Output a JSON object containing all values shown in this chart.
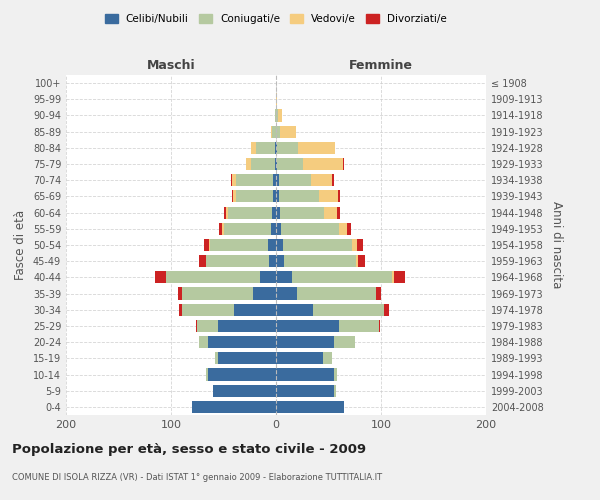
{
  "age_groups": [
    "0-4",
    "5-9",
    "10-14",
    "15-19",
    "20-24",
    "25-29",
    "30-34",
    "35-39",
    "40-44",
    "45-49",
    "50-54",
    "55-59",
    "60-64",
    "65-69",
    "70-74",
    "75-79",
    "80-84",
    "85-89",
    "90-94",
    "95-99",
    "100+"
  ],
  "birth_years": [
    "2004-2008",
    "1999-2003",
    "1994-1998",
    "1989-1993",
    "1984-1988",
    "1979-1983",
    "1974-1978",
    "1969-1973",
    "1964-1968",
    "1959-1963",
    "1954-1958",
    "1949-1953",
    "1944-1948",
    "1939-1943",
    "1934-1938",
    "1929-1933",
    "1924-1928",
    "1919-1923",
    "1914-1918",
    "1909-1913",
    "≤ 1908"
  ],
  "colors": {
    "celibi": "#3a6b9e",
    "coniugati": "#b5c9a0",
    "vedovi": "#f5cc7f",
    "divorziati": "#cc2222"
  },
  "legend_colors": {
    "Celibi/Nubili": "#3a6b9e",
    "Coniugati/e": "#b5c9a0",
    "Vedovi/e": "#f5cc7f",
    "Divorziati/e": "#cc2222"
  },
  "males": {
    "celibi": [
      80,
      60,
      65,
      55,
      65,
      55,
      40,
      22,
      15,
      7,
      8,
      5,
      4,
      3,
      3,
      1,
      1,
      0,
      0,
      0,
      0
    ],
    "coniugati": [
      0,
      0,
      2,
      3,
      8,
      20,
      50,
      68,
      90,
      60,
      55,
      45,
      42,
      35,
      35,
      23,
      18,
      4,
      1,
      0,
      0
    ],
    "vedovi": [
      0,
      0,
      0,
      0,
      0,
      0,
      0,
      0,
      0,
      0,
      1,
      1,
      2,
      3,
      4,
      5,
      5,
      1,
      0,
      0,
      0
    ],
    "divorziati": [
      0,
      0,
      0,
      0,
      0,
      1,
      2,
      3,
      10,
      6,
      5,
      3,
      2,
      1,
      1,
      0,
      0,
      0,
      0,
      0,
      0
    ]
  },
  "females": {
    "celibi": [
      65,
      55,
      55,
      45,
      55,
      60,
      35,
      20,
      15,
      8,
      7,
      5,
      4,
      3,
      3,
      1,
      1,
      0,
      0,
      0,
      0
    ],
    "coniugati": [
      0,
      2,
      3,
      8,
      20,
      38,
      68,
      75,
      95,
      68,
      65,
      55,
      42,
      38,
      30,
      25,
      20,
      4,
      2,
      0,
      0
    ],
    "vedovi": [
      0,
      0,
      0,
      0,
      0,
      0,
      0,
      0,
      2,
      2,
      5,
      8,
      12,
      18,
      20,
      38,
      35,
      15,
      4,
      1,
      0
    ],
    "divorziati": [
      0,
      0,
      0,
      0,
      0,
      1,
      5,
      5,
      11,
      7,
      6,
      3,
      3,
      2,
      2,
      1,
      0,
      0,
      0,
      0,
      0
    ]
  },
  "xlim": [
    -200,
    200
  ],
  "xticks": [
    -200,
    -100,
    0,
    100,
    200
  ],
  "xticklabels": [
    "200",
    "100",
    "0",
    "100",
    "200"
  ],
  "title": "Popolazione per età, sesso e stato civile - 2009",
  "subtitle": "COMUNE DI ISOLA RIZZA (VR) - Dati ISTAT 1° gennaio 2009 - Elaborazione TUTTITALIA.IT",
  "ylabel_left": "Fasce di età",
  "ylabel_right": "Anni di nascita",
  "label_maschi": "Maschi",
  "label_femmine": "Femmine",
  "bg_color": "#f0f0f0",
  "plot_bg_color": "#ffffff"
}
